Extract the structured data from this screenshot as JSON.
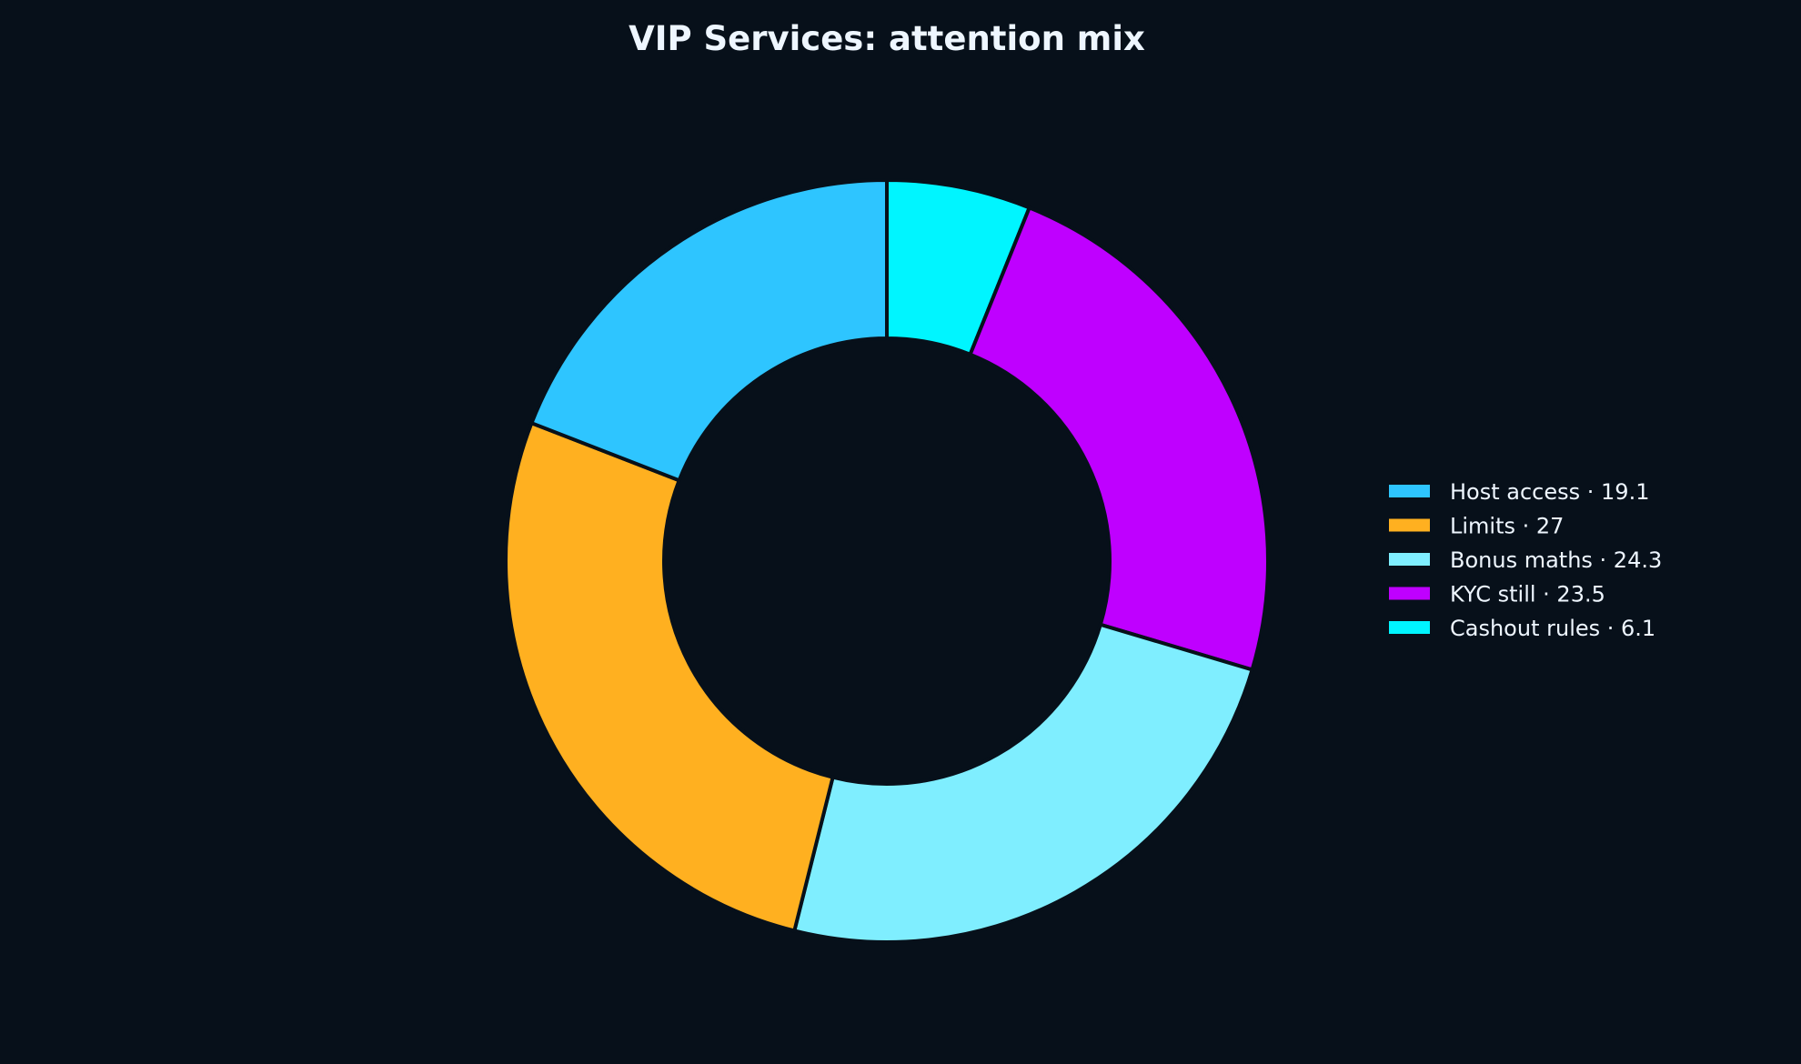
{
  "chart_data": {
    "type": "pie",
    "title": "VIP Services: attention mix",
    "donut": true,
    "start": "top, clockwise",
    "slices": [
      {
        "label": "Cashout rules",
        "value": 6.1,
        "color": "#00f5ff",
        "legend_text": "Cashout rules · 6.1"
      },
      {
        "label": "KYC still",
        "value": 23.5,
        "color": "#bf00ff",
        "legend_text": "KYC still · 23.5"
      },
      {
        "label": "Bonus maths",
        "value": 24.3,
        "color": "#7feeff",
        "legend_text": "Bonus maths · 24.3"
      },
      {
        "label": "Limits",
        "value": 27,
        "color": "#ffb020",
        "legend_text": "Limits · 27"
      },
      {
        "label": "Host access",
        "value": 19.1,
        "color": "#2ec5ff",
        "legend_text": "Host access · 19.1"
      }
    ],
    "legend_order": [
      "Host access",
      "Limits",
      "Bonus maths",
      "KYC still",
      "Cashout rules"
    ],
    "legend_position": "right",
    "colors": {
      "background": "#07101a",
      "text": "#eef6ff",
      "slice_edge": "#07101a"
    }
  }
}
